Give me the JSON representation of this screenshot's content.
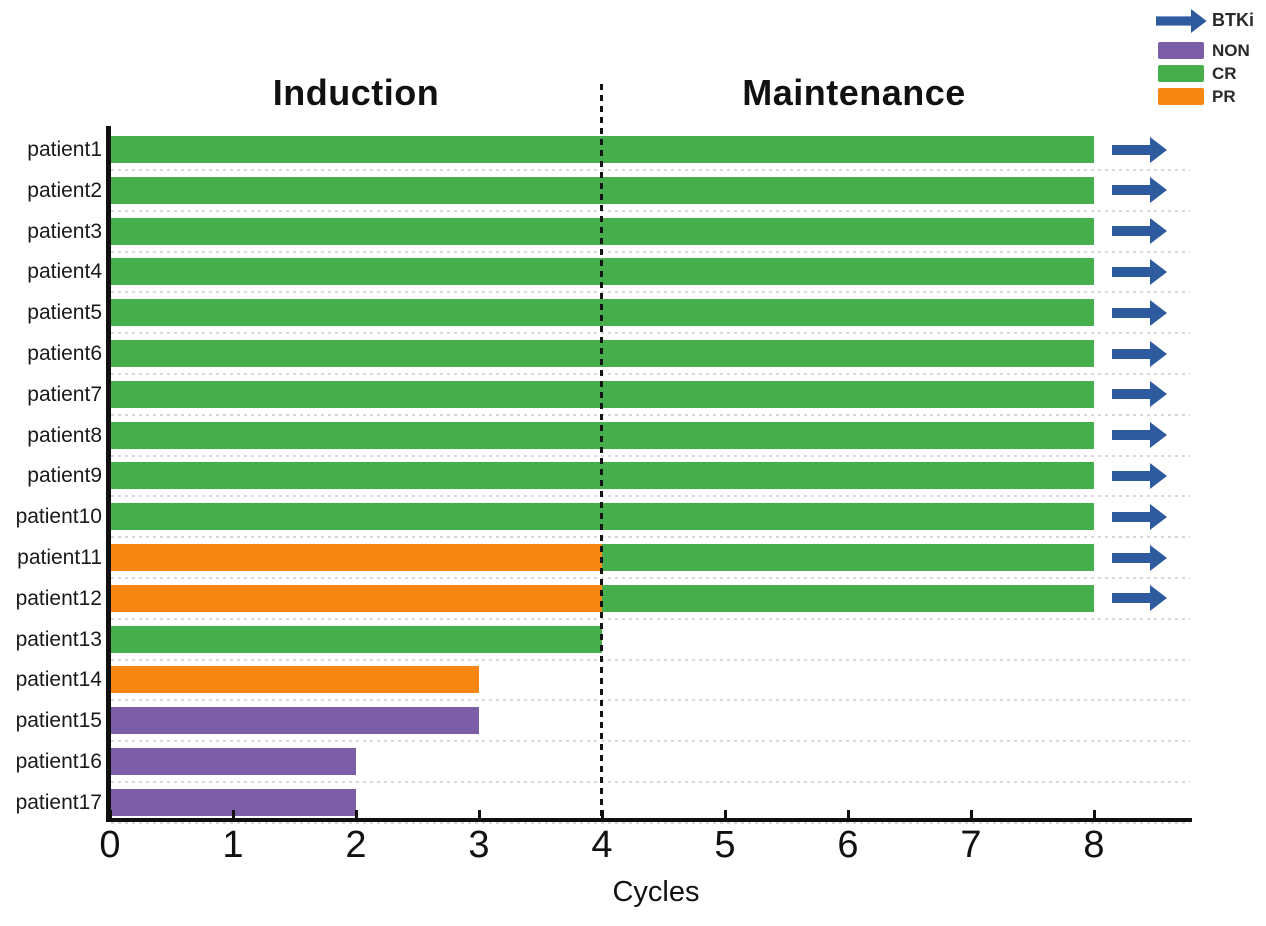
{
  "chart_data": {
    "type": "bar",
    "orientation": "horizontal",
    "title": "",
    "xlabel": "Cycles",
    "xlim": [
      0,
      8.8
    ],
    "xticks": [
      0,
      1,
      2,
      3,
      4,
      5,
      6,
      7,
      8
    ],
    "grid": "horizontal-dotted",
    "phase_divider_x": 4,
    "phases": [
      {
        "label": "Induction",
        "x_range": [
          0,
          4
        ]
      },
      {
        "label": "Maintenance",
        "x_range": [
          4,
          8
        ]
      }
    ],
    "colors": {
      "CR": "#46AE4C",
      "PR": "#F78712",
      "NON": "#7C5EA6",
      "BTKi": "#2E5A9E"
    },
    "legend": {
      "position": "top-right",
      "items": [
        {
          "label": "BTKi",
          "marker": "arrow",
          "color": "#2E5A9E"
        },
        {
          "label": "NON",
          "marker": "swatch",
          "color": "#7C5EA6"
        },
        {
          "label": "CR",
          "marker": "swatch",
          "color": "#46AE4C"
        },
        {
          "label": "PR",
          "marker": "swatch",
          "color": "#F78712"
        }
      ]
    },
    "patients": [
      {
        "name": "patient1",
        "segments": [
          {
            "response": "CR",
            "from": 0,
            "to": 8
          }
        ],
        "btki": true
      },
      {
        "name": "patient2",
        "segments": [
          {
            "response": "CR",
            "from": 0,
            "to": 8
          }
        ],
        "btki": true
      },
      {
        "name": "patient3",
        "segments": [
          {
            "response": "CR",
            "from": 0,
            "to": 8
          }
        ],
        "btki": true
      },
      {
        "name": "patient4",
        "segments": [
          {
            "response": "CR",
            "from": 0,
            "to": 8
          }
        ],
        "btki": true
      },
      {
        "name": "patient5",
        "segments": [
          {
            "response": "CR",
            "from": 0,
            "to": 8
          }
        ],
        "btki": true
      },
      {
        "name": "patient6",
        "segments": [
          {
            "response": "CR",
            "from": 0,
            "to": 8
          }
        ],
        "btki": true
      },
      {
        "name": "patient7",
        "segments": [
          {
            "response": "CR",
            "from": 0,
            "to": 8
          }
        ],
        "btki": true
      },
      {
        "name": "patient8",
        "segments": [
          {
            "response": "CR",
            "from": 0,
            "to": 8
          }
        ],
        "btki": true
      },
      {
        "name": "patient9",
        "segments": [
          {
            "response": "CR",
            "from": 0,
            "to": 8
          }
        ],
        "btki": true
      },
      {
        "name": "patient10",
        "segments": [
          {
            "response": "CR",
            "from": 0,
            "to": 8
          }
        ],
        "btki": true
      },
      {
        "name": "patient11",
        "segments": [
          {
            "response": "PR",
            "from": 0,
            "to": 4
          },
          {
            "response": "CR",
            "from": 4,
            "to": 8
          }
        ],
        "btki": true
      },
      {
        "name": "patient12",
        "segments": [
          {
            "response": "PR",
            "from": 0,
            "to": 4
          },
          {
            "response": "CR",
            "from": 4,
            "to": 8
          }
        ],
        "btki": true
      },
      {
        "name": "patient13",
        "segments": [
          {
            "response": "CR",
            "from": 0,
            "to": 4
          }
        ],
        "btki": false
      },
      {
        "name": "patient14",
        "segments": [
          {
            "response": "PR",
            "from": 0,
            "to": 3
          }
        ],
        "btki": false
      },
      {
        "name": "patient15",
        "segments": [
          {
            "response": "NON",
            "from": 0,
            "to": 3
          }
        ],
        "btki": false
      },
      {
        "name": "patient16",
        "segments": [
          {
            "response": "NON",
            "from": 0,
            "to": 2
          }
        ],
        "btki": false
      },
      {
        "name": "patient17",
        "segments": [
          {
            "response": "NON",
            "from": 0,
            "to": 2
          }
        ],
        "btki": false
      }
    ]
  }
}
